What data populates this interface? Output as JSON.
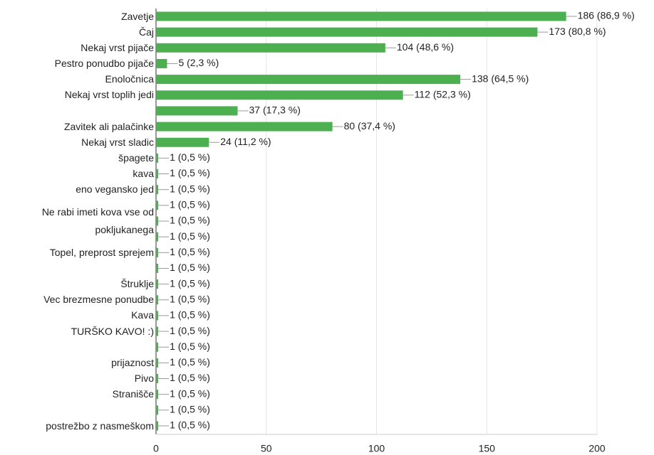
{
  "chart_data": {
    "type": "bar",
    "orientation": "horizontal",
    "color": "#4caf50",
    "categories": [
      "Zavetje",
      "Čaj",
      "Nekaj vrst pijače",
      "Pestro ponudbo pijače",
      "Enoločnica",
      "Nekaj vrst toplih jedi",
      null,
      "Zavitek ali palačinke",
      "Nekaj vrst sladic",
      "špagete",
      "kava",
      "eno vegansko jed",
      null,
      "Ne rabi imeti kova vse od pokljukanega",
      null,
      "Topel, preprost sprejem",
      null,
      "Štruklje",
      "Vec brezmesne ponudbe",
      "Kava",
      "TURŠKO KAVO! :)",
      null,
      "prijaznost",
      "Pivo",
      "Stranišče",
      null,
      "postrežbo z nasmeškom"
    ],
    "values": [
      186,
      173,
      104,
      5,
      138,
      112,
      37,
      80,
      24,
      1,
      1,
      1,
      1,
      1,
      1,
      1,
      1,
      1,
      1,
      1,
      1,
      1,
      1,
      1,
      1,
      1,
      1
    ],
    "value_labels": [
      "186 (86,9 %)",
      "173 (80,8 %)",
      "104 (48,6 %)",
      "5 (2,3 %)",
      "138 (64,5 %)",
      "112 (52,3 %)",
      "37 (17,3 %)",
      "80 (37,4 %)",
      "24 (11,2 %)",
      "1 (0,5 %)",
      "1 (0,5 %)",
      "1 (0,5 %)",
      "1 (0,5 %)",
      "1 (0,5 %)",
      "1 (0,5 %)",
      "1 (0,5 %)",
      "1 (0,5 %)",
      "1 (0,5 %)",
      "1 (0,5 %)",
      "1 (0,5 %)",
      "1 (0,5 %)",
      "1 (0,5 %)",
      "1 (0,5 %)",
      "1 (0,5 %)",
      "1 (0,5 %)",
      "1 (0,5 %)",
      "1 (0,5 %)"
    ],
    "xlim": [
      0,
      200
    ],
    "xticks": [
      0,
      50,
      100,
      150,
      200
    ],
    "grid": true
  }
}
